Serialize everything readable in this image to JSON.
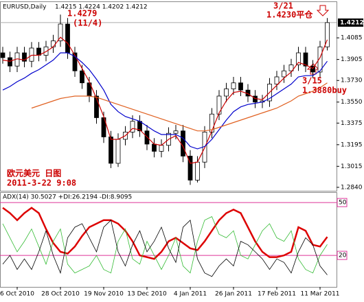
{
  "chart_data": [
    {
      "type": "candlestick",
      "title": "EURUSD,Daily",
      "subtitle": "1.4215 1.4224 1.4202 1.4212",
      "categories": [
        null,
        null,
        "6 Oct 2010",
        null,
        null,
        null,
        null,
        null,
        "28 Oct 2010",
        null,
        null,
        null,
        null,
        null,
        "19 Nov 2010",
        null,
        null,
        null,
        null,
        null,
        "13 Dec 2010",
        null,
        null,
        null,
        null,
        null,
        "4 Jan 2011",
        null,
        null,
        null,
        null,
        null,
        "26 Jan 2011",
        null,
        null,
        null,
        null,
        null,
        "17 Feb 2011",
        null,
        null,
        null,
        null,
        null,
        "11 Mar 2011",
        null
      ],
      "open": [
        1.396,
        1.392,
        1.385,
        1.396,
        1.389,
        1.4,
        1.394,
        1.401,
        1.406,
        1.42,
        1.396,
        1.381,
        1.371,
        1.36,
        1.342,
        1.326,
        1.304,
        1.324,
        1.33,
        1.339,
        1.331,
        1.32,
        1.314,
        1.319,
        1.329,
        1.331,
        1.31,
        1.29,
        1.305,
        1.33,
        1.345,
        1.36,
        1.366,
        1.371,
        1.365,
        1.36,
        1.355,
        1.356,
        1.37,
        1.376,
        1.381,
        1.386,
        1.396,
        1.385,
        1.38,
        1.401
      ],
      "high": [
        1.401,
        1.397,
        1.401,
        1.401,
        1.405,
        1.405,
        1.406,
        1.411,
        1.4279,
        1.425,
        1.401,
        1.386,
        1.376,
        1.365,
        1.347,
        1.331,
        1.329,
        1.335,
        1.344,
        1.344,
        1.336,
        1.325,
        1.324,
        1.334,
        1.336,
        1.336,
        1.315,
        1.31,
        1.335,
        1.35,
        1.365,
        1.371,
        1.376,
        1.376,
        1.37,
        1.365,
        1.361,
        1.375,
        1.381,
        1.386,
        1.391,
        1.401,
        1.401,
        1.39,
        1.406,
        1.425
      ],
      "low": [
        1.387,
        1.38,
        1.38,
        1.384,
        1.384,
        1.389,
        1.389,
        1.396,
        1.401,
        1.391,
        1.376,
        1.366,
        1.355,
        1.337,
        1.321,
        1.3,
        1.301,
        1.319,
        1.325,
        1.326,
        1.315,
        1.309,
        1.309,
        1.314,
        1.324,
        1.305,
        1.286,
        1.288,
        1.3,
        1.325,
        1.34,
        1.355,
        1.361,
        1.36,
        1.355,
        1.35,
        1.35,
        1.351,
        1.365,
        1.371,
        1.376,
        1.381,
        1.38,
        1.375,
        1.375,
        1.398
      ],
      "close": [
        1.392,
        1.385,
        1.396,
        1.389,
        1.4,
        1.394,
        1.401,
        1.406,
        1.42,
        1.396,
        1.381,
        1.371,
        1.36,
        1.342,
        1.326,
        1.304,
        1.324,
        1.33,
        1.339,
        1.331,
        1.32,
        1.314,
        1.319,
        1.329,
        1.331,
        1.31,
        1.29,
        1.305,
        1.33,
        1.345,
        1.36,
        1.366,
        1.371,
        1.365,
        1.36,
        1.355,
        1.356,
        1.37,
        1.376,
        1.381,
        1.386,
        1.396,
        1.385,
        1.38,
        1.401,
        1.4212
      ],
      "up_color": "#ffffff",
      "down_color": "#000000",
      "lines": [
        {
          "color": "#cc0000",
          "values": [
            1.39,
            1.389,
            1.391,
            1.39,
            1.394,
            1.394,
            1.397,
            1.401,
            1.409,
            1.404,
            1.394,
            1.383,
            1.372,
            1.358,
            1.343,
            1.324,
            1.324,
            1.327,
            1.333,
            1.332,
            1.326,
            1.32,
            1.319,
            1.324,
            1.327,
            1.318,
            1.304,
            1.305,
            1.317,
            1.331,
            1.346,
            1.356,
            1.363,
            1.364,
            1.362,
            1.358,
            1.357,
            1.363,
            1.369,
            1.375,
            1.38,
            1.388,
            1.386,
            1.383,
            1.392,
            1.407
          ]
        },
        {
          "color": "#0000cc",
          "values": [
            1.365,
            1.368,
            1.372,
            1.375,
            1.379,
            1.382,
            1.386,
            1.39,
            1.396,
            1.396,
            1.393,
            1.388,
            1.382,
            1.374,
            1.365,
            1.353,
            1.347,
            1.343,
            1.341,
            1.339,
            1.335,
            1.331,
            1.328,
            1.328,
            1.328,
            1.325,
            1.318,
            1.316,
            1.318,
            1.324,
            1.332,
            1.34,
            1.347,
            1.351,
            1.353,
            1.354,
            1.355,
            1.358,
            1.362,
            1.366,
            1.37,
            1.376,
            1.377,
            1.377,
            1.381,
            1.389
          ]
        },
        {
          "color": "#e06020",
          "values": [
            null,
            null,
            null,
            null,
            1.35,
            1.352,
            1.354,
            1.356,
            1.358,
            1.359,
            1.36,
            1.36,
            1.36,
            1.359,
            1.357,
            1.355,
            1.353,
            1.351,
            1.349,
            1.347,
            1.345,
            1.343,
            1.341,
            1.339,
            1.337,
            1.335,
            1.333,
            1.331,
            1.331,
            1.332,
            1.334,
            1.336,
            1.338,
            1.34,
            1.342,
            1.344,
            1.346,
            1.348,
            1.35,
            1.353,
            1.356,
            1.36,
            1.362,
            1.364,
            1.367,
            1.371
          ]
        }
      ],
      "last_price": 1.4212,
      "annotations": [
        "1.4279",
        "(11/4)",
        "3/21",
        "1.4230平仓",
        "3/15",
        "1.3880buy",
        "欧元美元  日图",
        "2011-3-22  9:08"
      ],
      "annotation_color": "#cc0000",
      "ylim": [
        1.2811,
        1.4383
      ],
      "yticks": [
        1.4085,
        1.3905,
        {
          "value": 1.373,
          "label": "1.3730"
        },
        {
          "value": 1.355,
          "label": "1.3550"
        },
        1.3375,
        1.3195,
        1.3015,
        {
          "value": 1.284,
          "label": "1.2840"
        }
      ]
    },
    {
      "type": "line",
      "title": "ADX(14) 30.5027 +DI:26.2194 -DI:8.9095",
      "series": [
        {
          "color": "#dd0000",
          "values": [
            47,
            44,
            40,
            44,
            47,
            44,
            35,
            27,
            22,
            21,
            25,
            31,
            36,
            38,
            40,
            40,
            38,
            34,
            28,
            20,
            19,
            18,
            22,
            28,
            30,
            27,
            24,
            23,
            28,
            34,
            40,
            44,
            46,
            44,
            36,
            28,
            22,
            19,
            19,
            20,
            22,
            36,
            34,
            26,
            25,
            30.5027
          ]
        },
        {
          "color": "#33bb33",
          "values": [
            38,
            30,
            22,
            28,
            35,
            25,
            15,
            28,
            35,
            15,
            10,
            12,
            14,
            20,
            12,
            10,
            28,
            35,
            18,
            15,
            28,
            20,
            12,
            20,
            30,
            14,
            10,
            28,
            40,
            42,
            32,
            30,
            34,
            20,
            18,
            26,
            34,
            38,
            30,
            28,
            34,
            18,
            12,
            10,
            20,
            26.2194
          ]
        },
        {
          "color": "#000000",
          "values": [
            15,
            20,
            12,
            18,
            12,
            22,
            34,
            20,
            10,
            30,
            36,
            38,
            30,
            22,
            36,
            40,
            22,
            14,
            26,
            34,
            22,
            28,
            36,
            24,
            16,
            36,
            40,
            18,
            10,
            8,
            14,
            18,
            14,
            28,
            26,
            22,
            18,
            12,
            18,
            16,
            10,
            22,
            30,
            26,
            14,
            8.9095
          ]
        }
      ],
      "level_color": "#dd3399",
      "ylim": [
        2.1,
        55.5
      ],
      "yticks": [
        50,
        20
      ]
    }
  ]
}
